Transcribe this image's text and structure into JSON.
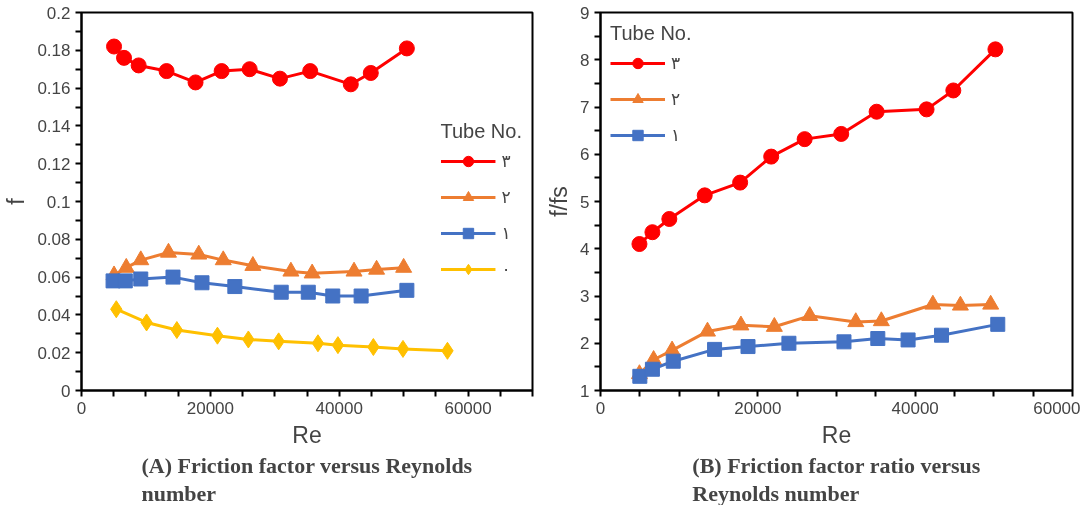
{
  "chart_data": [
    {
      "type": "line",
      "title": "(A) Friction factor versus Reynolds number",
      "xlabel": "Re",
      "ylabel": "f",
      "legend_title": "Tube No.",
      "legend": "right",
      "grid": false,
      "line_style": "solid",
      "xlim": [
        0,
        70000
      ],
      "xticks": [
        0,
        {
          "value": 5000,
          "label": null
        },
        {
          "value": 10000,
          "label": null
        },
        {
          "value": 15000,
          "label": null
        },
        20000,
        {
          "value": 25000,
          "label": null
        },
        {
          "value": 30000,
          "label": null
        },
        {
          "value": 35000,
          "label": null
        },
        40000,
        {
          "value": 45000,
          "label": null
        },
        {
          "value": 50000,
          "label": null
        },
        {
          "value": 55000,
          "label": null
        },
        60000,
        {
          "value": 65000,
          "label": null
        },
        {
          "value": 70000,
          "label": null
        }
      ],
      "ylim": [
        0,
        0.2
      ],
      "yticks": [
        0,
        {
          "value": 0.01,
          "label": null
        },
        0.02,
        {
          "value": 0.03,
          "label": null
        },
        0.04,
        {
          "value": 0.05,
          "label": null
        },
        0.06,
        {
          "value": 0.07,
          "label": null
        },
        0.08,
        {
          "value": 0.09,
          "label": null
        },
        0.1,
        {
          "value": 0.11,
          "label": null
        },
        0.12,
        {
          "value": 0.13,
          "label": null
        },
        0.14,
        {
          "value": 0.15,
          "label": null
        },
        0.16,
        {
          "value": 0.17,
          "label": null
        },
        0.18,
        {
          "value": 0.19,
          "label": null
        },
        0.2
      ],
      "series": [
        {
          "name": "٣",
          "color": "#ff0000",
          "marker": "circle",
          "x": [
            5050,
            6600,
            8870,
            13200,
            17700,
            21750,
            26100,
            30800,
            35500,
            41800,
            44900,
            50500
          ],
          "values": [
            0.182,
            0.176,
            0.172,
            0.169,
            0.163,
            0.169,
            0.17,
            0.165,
            0.169,
            0.162,
            0.168,
            0.181
          ]
        },
        {
          "name": "٢",
          "color": "#ed7d31",
          "marker": "triangle",
          "x": [
            5050,
            6950,
            9200,
            13500,
            18200,
            22000,
            26600,
            32500,
            35800,
            42300,
            45800,
            50000
          ],
          "values": [
            0.061,
            0.065,
            0.069,
            0.073,
            0.072,
            0.069,
            0.066,
            0.063,
            0.062,
            0.063,
            0.064,
            0.065
          ]
        },
        {
          "name": "١",
          "color": "#4472c4",
          "marker": "square",
          "x": [
            4900,
            6800,
            9200,
            14200,
            18700,
            23800,
            31000,
            35200,
            39000,
            43400,
            50500
          ],
          "values": [
            0.058,
            0.058,
            0.059,
            0.06,
            0.057,
            0.055,
            0.052,
            0.052,
            0.05,
            0.05,
            0.053
          ]
        },
        {
          "name": "٠",
          "color": "#ffc000",
          "marker": "diamond",
          "x": [
            5400,
            10100,
            14800,
            21100,
            25900,
            30600,
            36700,
            39800,
            45300,
            49900,
            56800
          ],
          "values": [
            0.043,
            0.036,
            0.032,
            0.029,
            0.027,
            0.026,
            0.025,
            0.024,
            0.023,
            0.022,
            0.021
          ]
        }
      ]
    },
    {
      "type": "line",
      "title": "(B) Friction factor ratio versus Reynolds number",
      "xlabel": "Re",
      "ylabel": "f/fs",
      "legend_title": "Tube No.",
      "legend": "top left",
      "grid": false,
      "line_style": "solid",
      "xlim": [
        0,
        60000
      ],
      "xticks": [
        0,
        {
          "value": 5000,
          "label": null
        },
        {
          "value": 10000,
          "label": null
        },
        {
          "value": 15000,
          "label": null
        },
        20000,
        {
          "value": 25000,
          "label": null
        },
        {
          "value": 30000,
          "label": null
        },
        {
          "value": 35000,
          "label": null
        },
        40000,
        {
          "value": 45000,
          "label": null
        },
        {
          "value": 50000,
          "label": null
        },
        {
          "value": 55000,
          "label": null
        },
        60000
      ],
      "ylim": [
        1,
        9
      ],
      "yticks": [
        1,
        {
          "value": 1.5,
          "label": null
        },
        2,
        {
          "value": 2.5,
          "label": null
        },
        3,
        {
          "value": 3.5,
          "label": null
        },
        4,
        {
          "value": 4.5,
          "label": null
        },
        5,
        {
          "value": 5.5,
          "label": null
        },
        6,
        {
          "value": 6.5,
          "label": null
        },
        7,
        {
          "value": 7.5,
          "label": null
        },
        8,
        {
          "value": 8.5,
          "label": null
        },
        9
      ],
      "series": [
        {
          "name": "٣",
          "color": "#ff0000",
          "marker": "circle",
          "x": [
            4950,
            6600,
            8750,
            13250,
            17750,
            21700,
            25950,
            30600,
            35100,
            41450,
            44850,
            50200
          ],
          "values": [
            4.1,
            4.35,
            4.63,
            5.13,
            5.4,
            5.95,
            6.32,
            6.43,
            6.9,
            6.95,
            7.35,
            8.22
          ]
        },
        {
          "name": "٢",
          "color": "#ed7d31",
          "marker": "triangle",
          "x": [
            4950,
            6750,
            9100,
            13600,
            17850,
            22100,
            26600,
            32450,
            35700,
            42250,
            45750,
            49600
          ],
          "values": [
            1.35,
            1.65,
            1.85,
            2.25,
            2.38,
            2.35,
            2.58,
            2.45,
            2.47,
            2.82,
            2.8,
            2.82
          ]
        },
        {
          "name": "١",
          "color": "#4472c4",
          "marker": "square",
          "x": [
            5000,
            6600,
            9250,
            14500,
            18750,
            23950,
            30950,
            35250,
            39100,
            43350,
            50500
          ],
          "values": [
            1.3,
            1.45,
            1.62,
            1.87,
            1.93,
            2.0,
            2.03,
            2.1,
            2.07,
            2.17,
            2.4
          ]
        }
      ]
    }
  ]
}
